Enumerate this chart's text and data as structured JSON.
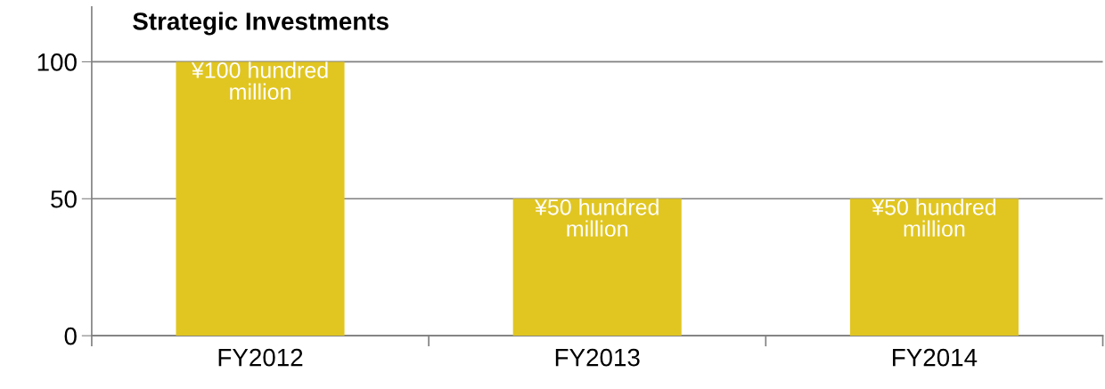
{
  "chart_data": {
    "type": "bar",
    "title": "Strategic Investments",
    "categories": [
      "FY2012",
      "FY2013",
      "FY2014"
    ],
    "values": [
      100,
      50,
      50
    ],
    "color": "#e1c622",
    "value_labels": [
      "¥100 hundred\nmillion",
      "¥50 hundred\nmillion",
      "¥50 hundred\nmillion"
    ],
    "ylim": [
      0,
      120
    ],
    "yticks": [
      0,
      50,
      100
    ],
    "grid": "y",
    "legend": false
  }
}
